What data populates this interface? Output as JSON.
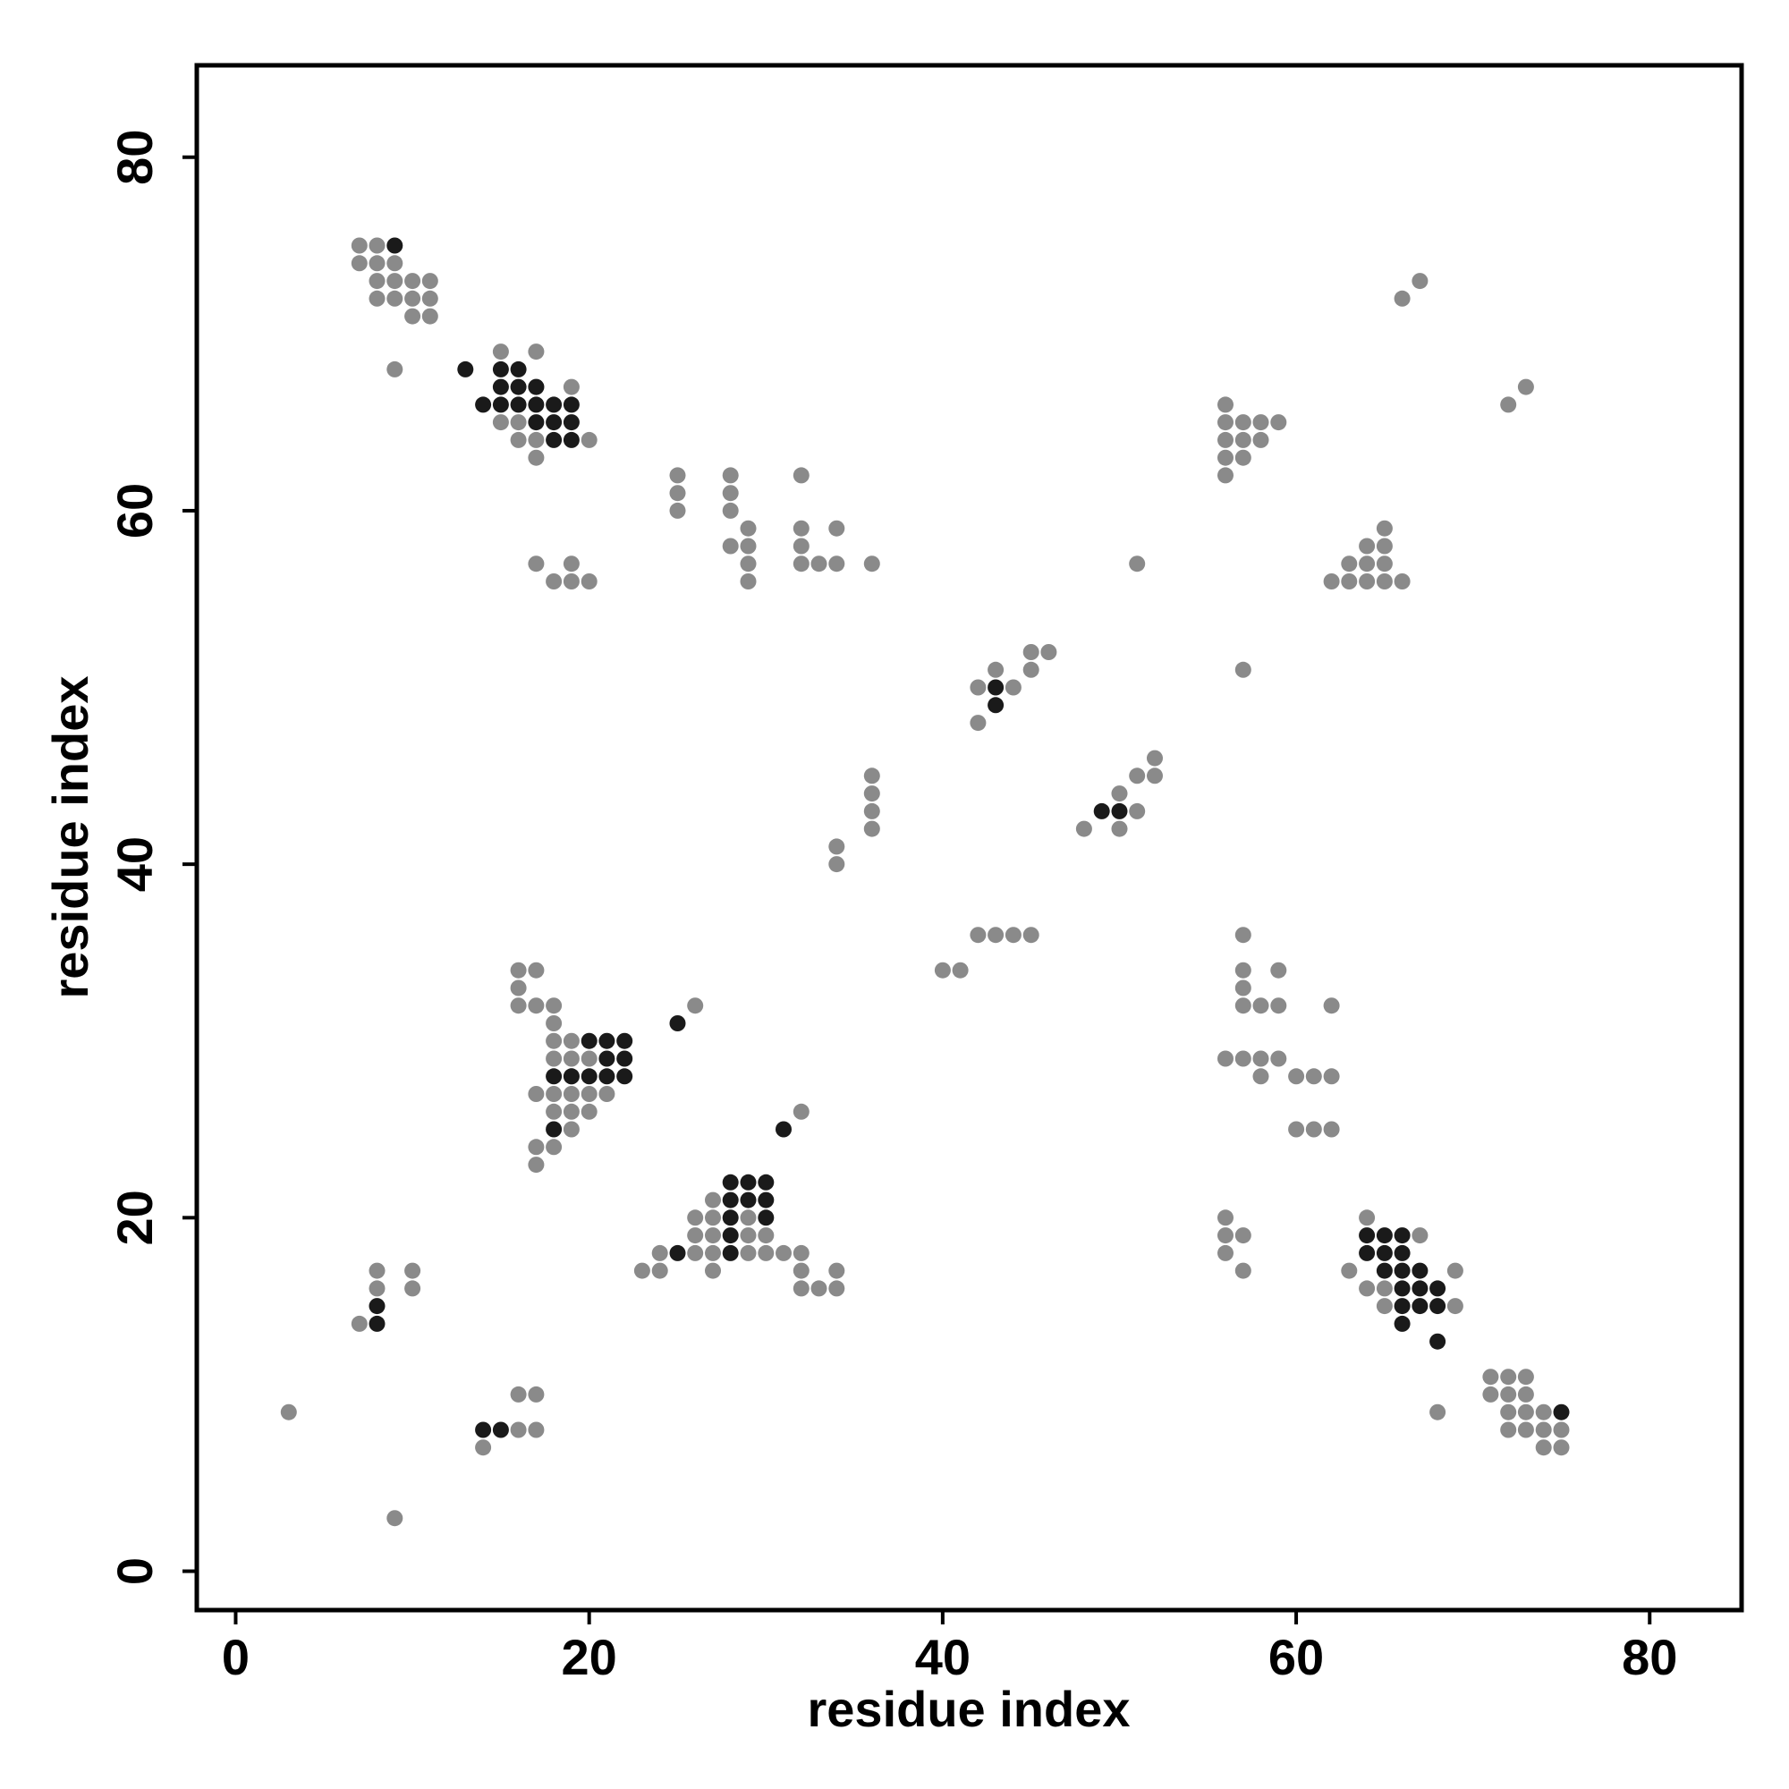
{
  "chart_data": {
    "type": "scatter",
    "title": "",
    "xlabel": "residue index",
    "ylabel": "residue index",
    "xlim": [
      -2.2,
      85.2
    ],
    "ylim": [
      -2.2,
      85.2
    ],
    "xticks": [
      0,
      20,
      40,
      60,
      80
    ],
    "yticks": [
      0,
      20,
      40,
      60,
      80
    ],
    "grid": false,
    "colors": {
      "gray": "#8a8a8a",
      "black": "#1a1a1a"
    },
    "series": [
      {
        "color": "#8a8a8a",
        "points": [
          [
            7,
            75
          ],
          [
            8,
            75
          ],
          [
            7,
            74
          ],
          [
            8,
            74
          ],
          [
            9,
            74
          ],
          [
            8,
            73
          ],
          [
            9,
            73
          ],
          [
            10,
            73
          ],
          [
            11,
            73
          ],
          [
            8,
            72
          ],
          [
            9,
            72
          ],
          [
            10,
            72
          ],
          [
            11,
            72
          ],
          [
            10,
            71
          ],
          [
            11,
            71
          ],
          [
            9,
            68
          ],
          [
            15,
            69
          ],
          [
            17,
            69
          ],
          [
            17,
            67
          ],
          [
            19,
            67
          ],
          [
            15,
            65
          ],
          [
            16,
            65
          ],
          [
            16,
            64
          ],
          [
            17,
            64
          ],
          [
            20,
            64
          ],
          [
            17,
            63
          ],
          [
            25,
            62
          ],
          [
            25,
            61
          ],
          [
            25,
            60
          ],
          [
            28,
            62
          ],
          [
            28,
            61
          ],
          [
            28,
            60
          ],
          [
            28,
            58
          ],
          [
            29,
            58
          ],
          [
            29,
            59
          ],
          [
            29,
            57
          ],
          [
            29,
            56
          ],
          [
            32,
            62
          ],
          [
            32,
            59
          ],
          [
            32,
            58
          ],
          [
            32,
            57
          ],
          [
            33,
            57
          ],
          [
            34,
            57
          ],
          [
            34,
            59
          ],
          [
            36,
            57
          ],
          [
            17,
            57
          ],
          [
            18,
            56
          ],
          [
            19,
            57
          ],
          [
            19,
            56
          ],
          [
            20,
            56
          ],
          [
            66,
            72
          ],
          [
            67,
            73
          ],
          [
            72,
            66
          ],
          [
            73,
            67
          ],
          [
            56,
            66
          ],
          [
            56,
            65
          ],
          [
            57,
            65
          ],
          [
            58,
            65
          ],
          [
            59,
            65
          ],
          [
            56,
            64
          ],
          [
            57,
            64
          ],
          [
            58,
            64
          ],
          [
            56,
            63
          ],
          [
            57,
            63
          ],
          [
            56,
            62
          ],
          [
            65,
            59
          ],
          [
            64,
            58
          ],
          [
            65,
            58
          ],
          [
            63,
            57
          ],
          [
            64,
            57
          ],
          [
            65,
            57
          ],
          [
            62,
            56
          ],
          [
            63,
            56
          ],
          [
            64,
            56
          ],
          [
            65,
            56
          ],
          [
            66,
            56
          ],
          [
            51,
            57
          ],
          [
            57,
            51
          ],
          [
            45,
            52
          ],
          [
            46,
            52
          ],
          [
            43,
            51
          ],
          [
            45,
            51
          ],
          [
            42,
            50
          ],
          [
            44,
            50
          ],
          [
            42,
            48
          ],
          [
            52,
            46
          ],
          [
            51,
            45
          ],
          [
            52,
            45
          ],
          [
            50,
            44
          ],
          [
            51,
            43
          ],
          [
            48,
            42
          ],
          [
            50,
            42
          ],
          [
            36,
            45
          ],
          [
            36,
            44
          ],
          [
            36,
            43
          ],
          [
            36,
            42
          ],
          [
            34,
            41
          ],
          [
            34,
            40
          ],
          [
            42,
            36
          ],
          [
            43,
            36
          ],
          [
            44,
            36
          ],
          [
            45,
            36
          ],
          [
            40,
            34
          ],
          [
            41,
            34
          ],
          [
            57,
            36
          ],
          [
            57,
            34
          ],
          [
            59,
            34
          ],
          [
            57,
            33
          ],
          [
            57,
            32
          ],
          [
            58,
            32
          ],
          [
            59,
            32
          ],
          [
            62,
            32
          ],
          [
            56,
            29
          ],
          [
            57,
            29
          ],
          [
            58,
            29
          ],
          [
            59,
            29
          ],
          [
            58,
            28
          ],
          [
            60,
            28
          ],
          [
            61,
            28
          ],
          [
            62,
            28
          ],
          [
            60,
            25
          ],
          [
            61,
            25
          ],
          [
            62,
            25
          ],
          [
            16,
            34
          ],
          [
            17,
            34
          ],
          [
            16,
            33
          ],
          [
            16,
            32
          ],
          [
            17,
            32
          ],
          [
            18,
            32
          ],
          [
            18,
            31
          ],
          [
            18,
            30
          ],
          [
            19,
            30
          ],
          [
            18,
            29
          ],
          [
            19,
            29
          ],
          [
            20,
            29
          ],
          [
            19,
            28
          ],
          [
            17,
            27
          ],
          [
            18,
            27
          ],
          [
            19,
            27
          ],
          [
            20,
            27
          ],
          [
            21,
            27
          ],
          [
            18,
            26
          ],
          [
            19,
            26
          ],
          [
            20,
            26
          ],
          [
            19,
            25
          ],
          [
            17,
            24
          ],
          [
            18,
            24
          ],
          [
            17,
            23
          ],
          [
            26,
            32
          ],
          [
            32,
            26
          ],
          [
            27,
            21
          ],
          [
            26,
            20
          ],
          [
            27,
            20
          ],
          [
            29,
            20
          ],
          [
            26,
            19
          ],
          [
            27,
            19
          ],
          [
            29,
            19
          ],
          [
            30,
            19
          ],
          [
            23,
            17
          ],
          [
            24,
            17
          ],
          [
            24,
            18
          ],
          [
            26,
            18
          ],
          [
            27,
            18
          ],
          [
            29,
            18
          ],
          [
            30,
            18
          ],
          [
            31,
            18
          ],
          [
            32,
            18
          ],
          [
            27,
            17
          ],
          [
            32,
            17
          ],
          [
            34,
            17
          ],
          [
            32,
            16
          ],
          [
            33,
            16
          ],
          [
            34,
            16
          ],
          [
            64,
            20
          ],
          [
            56,
            20
          ],
          [
            56,
            19
          ],
          [
            57,
            19
          ],
          [
            56,
            18
          ],
          [
            57,
            17
          ],
          [
            63,
            17
          ],
          [
            67,
            19
          ],
          [
            69,
            17
          ],
          [
            64,
            16
          ],
          [
            65,
            16
          ],
          [
            65,
            15
          ],
          [
            69,
            15
          ],
          [
            8,
            17
          ],
          [
            10,
            17
          ],
          [
            8,
            16
          ],
          [
            10,
            16
          ],
          [
            7,
            14
          ],
          [
            71,
            11
          ],
          [
            72,
            11
          ],
          [
            73,
            11
          ],
          [
            71,
            10
          ],
          [
            72,
            10
          ],
          [
            73,
            10
          ],
          [
            72,
            9
          ],
          [
            73,
            9
          ],
          [
            74,
            9
          ],
          [
            72,
            8
          ],
          [
            73,
            8
          ],
          [
            74,
            8
          ],
          [
            75,
            8
          ],
          [
            74,
            7
          ],
          [
            75,
            7
          ],
          [
            68,
            9
          ],
          [
            3,
            9
          ],
          [
            16,
            10
          ],
          [
            17,
            10
          ],
          [
            16,
            8
          ],
          [
            17,
            8
          ],
          [
            14,
            7
          ],
          [
            9,
            3
          ]
        ]
      },
      {
        "color": "#1a1a1a",
        "points": [
          [
            9,
            75
          ],
          [
            13,
            68
          ],
          [
            15,
            68
          ],
          [
            16,
            68
          ],
          [
            15,
            67
          ],
          [
            16,
            67
          ],
          [
            17,
            67
          ],
          [
            14,
            66
          ],
          [
            15,
            66
          ],
          [
            16,
            66
          ],
          [
            17,
            66
          ],
          [
            18,
            66
          ],
          [
            19,
            66
          ],
          [
            17,
            65
          ],
          [
            18,
            65
          ],
          [
            19,
            65
          ],
          [
            18,
            64
          ],
          [
            19,
            64
          ],
          [
            43,
            50
          ],
          [
            43,
            49
          ],
          [
            49,
            43
          ],
          [
            50,
            43
          ],
          [
            20,
            30
          ],
          [
            21,
            30
          ],
          [
            22,
            30
          ],
          [
            21,
            29
          ],
          [
            22,
            29
          ],
          [
            18,
            28
          ],
          [
            19,
            28
          ],
          [
            20,
            28
          ],
          [
            21,
            28
          ],
          [
            22,
            28
          ],
          [
            18,
            25
          ],
          [
            25,
            31
          ],
          [
            31,
            25
          ],
          [
            28,
            22
          ],
          [
            29,
            22
          ],
          [
            30,
            22
          ],
          [
            28,
            21
          ],
          [
            29,
            21
          ],
          [
            30,
            21
          ],
          [
            28,
            20
          ],
          [
            30,
            20
          ],
          [
            28,
            19
          ],
          [
            25,
            18
          ],
          [
            28,
            18
          ],
          [
            64,
            19
          ],
          [
            65,
            19
          ],
          [
            66,
            19
          ],
          [
            64,
            18
          ],
          [
            65,
            18
          ],
          [
            66,
            18
          ],
          [
            65,
            17
          ],
          [
            66,
            17
          ],
          [
            67,
            17
          ],
          [
            66,
            16
          ],
          [
            67,
            16
          ],
          [
            68,
            16
          ],
          [
            66,
            15
          ],
          [
            67,
            15
          ],
          [
            68,
            15
          ],
          [
            66,
            14
          ],
          [
            68,
            13
          ],
          [
            8,
            15
          ],
          [
            8,
            14
          ],
          [
            14,
            8
          ],
          [
            15,
            8
          ],
          [
            75,
            9
          ]
        ]
      }
    ]
  }
}
